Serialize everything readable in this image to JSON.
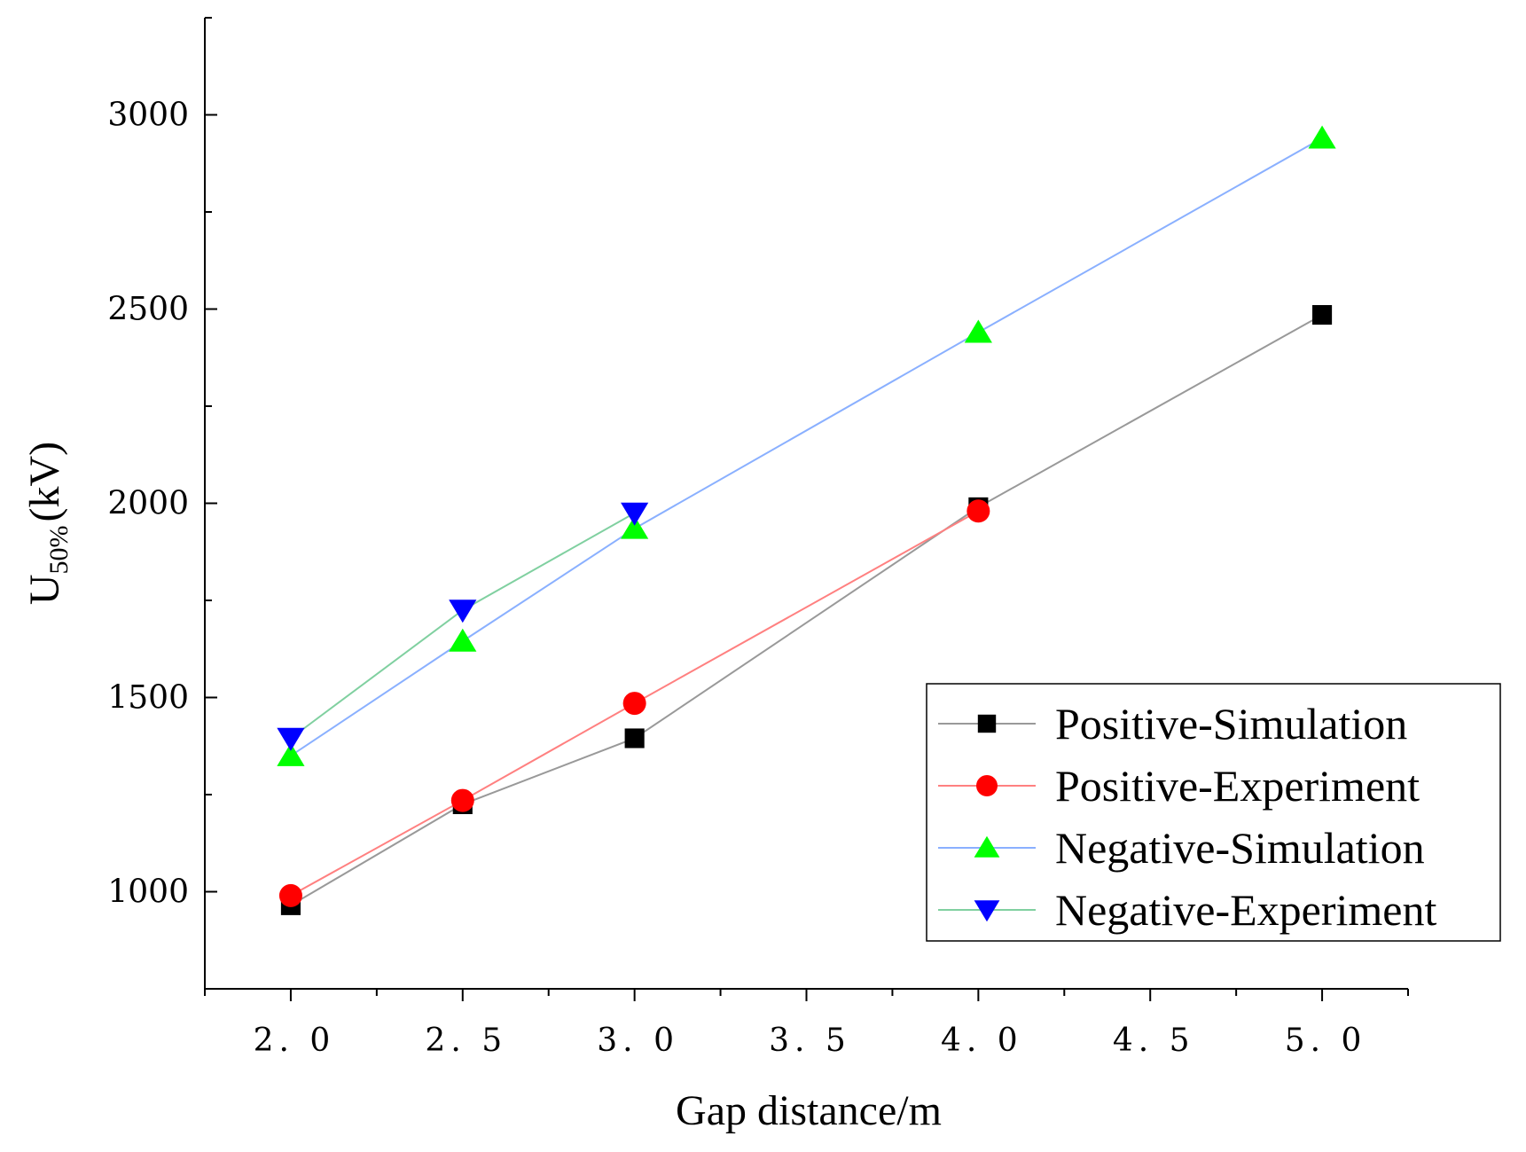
{
  "chart_data": {
    "type": "line",
    "xlabel": "Gap distance/m",
    "ylabel": {
      "main": "U",
      "subscript": "50%",
      "unit": "(kV)"
    },
    "xlim": [
      1.75,
      5.25
    ],
    "ylim": [
      750,
      3250
    ],
    "xticks": [
      2.0,
      2.5,
      3.0,
      3.5,
      4.0,
      4.5,
      5.0
    ],
    "xtick_labels": [
      "2. 0",
      "2. 5",
      "3. 0",
      "3. 5",
      "4. 0",
      "4. 5",
      "5. 0"
    ],
    "yticks": [
      1000,
      1500,
      2000,
      2500,
      3000
    ],
    "ytick_labels": [
      "1000",
      "1500",
      "2000",
      "2500",
      "3000"
    ],
    "legend_position": "lower-right",
    "series": [
      {
        "name": "Positive-Simulation",
        "marker": "square",
        "marker_color": "#000000",
        "line_color": "#999999",
        "x": [
          2.0,
          2.5,
          3.0,
          4.0,
          5.0
        ],
        "y": [
          965,
          1225,
          1395,
          1990,
          2485
        ]
      },
      {
        "name": "Positive-Experiment",
        "marker": "circle",
        "marker_color": "#ff0000",
        "line_color": "#ff8080",
        "x": [
          2.0,
          2.5,
          3.0,
          4.0
        ],
        "y": [
          990,
          1235,
          1485,
          1980
        ]
      },
      {
        "name": "Negative-Simulation",
        "marker": "triangle-up",
        "marker_color": "#00ff00",
        "line_color": "#8ab0ff",
        "x": [
          2.0,
          2.5,
          3.0,
          4.0,
          5.0
        ],
        "y": [
          1350,
          1645,
          1935,
          2440,
          2940
        ]
      },
      {
        "name": "Negative-Experiment",
        "marker": "triangle-down",
        "marker_color": "#0000ff",
        "line_color": "#80d0a0",
        "x": [
          2.0,
          2.5,
          3.0
        ],
        "y": [
          1395,
          1725,
          1975
        ]
      }
    ]
  }
}
